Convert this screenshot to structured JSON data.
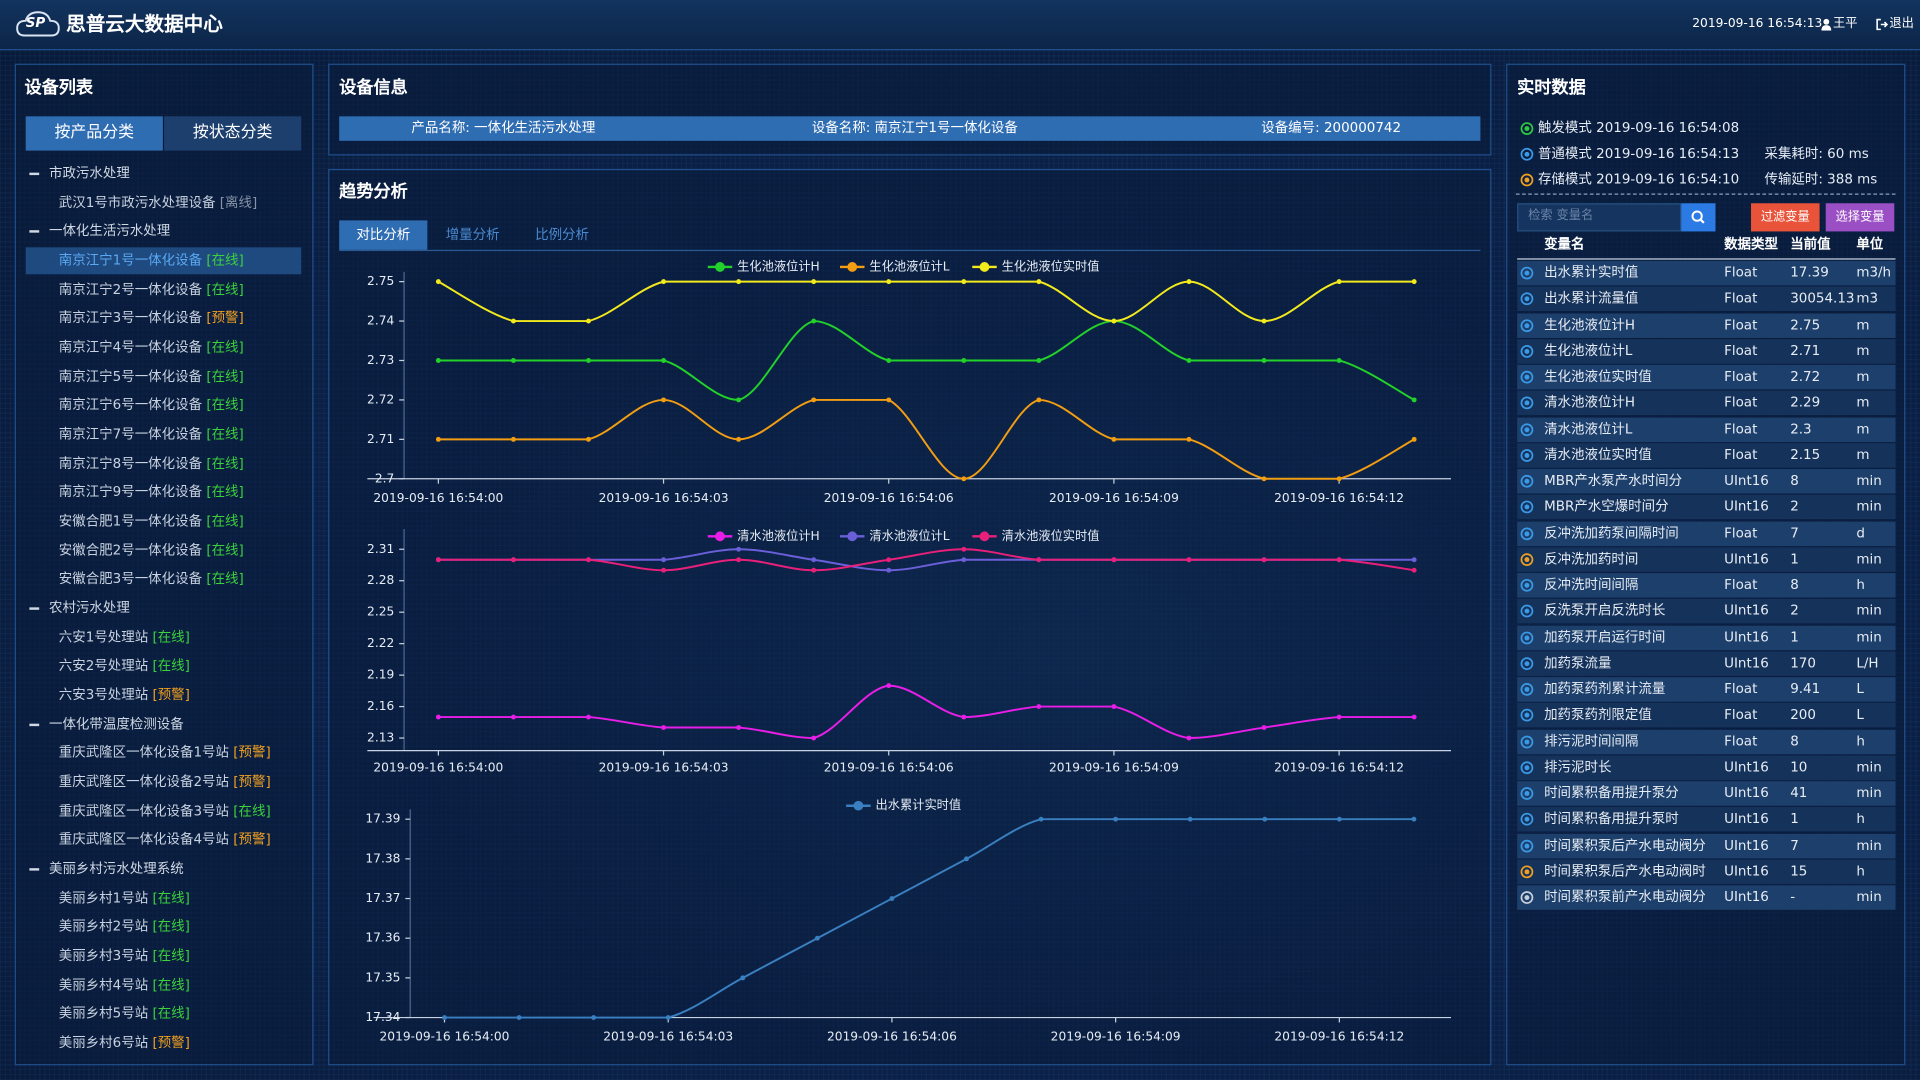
{
  "header": {
    "logo_text": "SP",
    "title": "思普云大数据中心",
    "datetime": "2019-09-16 16:54:13",
    "user": "王平",
    "logout": "退出"
  },
  "device_list": {
    "title": "设备列表",
    "tabs": [
      "按产品分类",
      "按状态分类"
    ],
    "active_tab": 0,
    "selected": [
      1,
      0
    ],
    "groups": [
      {
        "name": "市政污水处理",
        "items": [
          {
            "name": "武汉1号市政污水处理设备",
            "status": "[离线]",
            "color": "#8693a6"
          }
        ]
      },
      {
        "name": "一体化生活污水处理",
        "items": [
          {
            "name": "南京江宁1号一体化设备",
            "status": "[在线]",
            "color": "#3bd23b"
          },
          {
            "name": "南京江宁2号一体化设备",
            "status": "[在线]",
            "color": "#3bd23b"
          },
          {
            "name": "南京江宁3号一体化设备",
            "status": "[预警]",
            "color": "#f0a020"
          },
          {
            "name": "南京江宁4号一体化设备",
            "status": "[在线]",
            "color": "#3bd23b"
          },
          {
            "name": "南京江宁5号一体化设备",
            "status": "[在线]",
            "color": "#3bd23b"
          },
          {
            "name": "南京江宁6号一体化设备",
            "status": "[在线]",
            "color": "#3bd23b"
          },
          {
            "name": "南京江宁7号一体化设备",
            "status": "[在线]",
            "color": "#3bd23b"
          },
          {
            "name": "南京江宁8号一体化设备",
            "status": "[在线]",
            "color": "#3bd23b"
          },
          {
            "name": "南京江宁9号一体化设备",
            "status": "[在线]",
            "color": "#3bd23b"
          },
          {
            "name": "安徽合肥1号一体化设备",
            "status": "[在线]",
            "color": "#3bd23b"
          },
          {
            "name": "安徽合肥2号一体化设备",
            "status": "[在线]",
            "color": "#3bd23b"
          },
          {
            "name": "安徽合肥3号一体化设备",
            "status": "[在线]",
            "color": "#3bd23b"
          }
        ]
      },
      {
        "name": "农村污水处理",
        "items": [
          {
            "name": "六安1号处理站",
            "status": "[在线]",
            "color": "#3bd23b"
          },
          {
            "name": "六安2号处理站",
            "status": "[在线]",
            "color": "#3bd23b"
          },
          {
            "name": "六安3号处理站",
            "status": "[预警]",
            "color": "#f0a020"
          }
        ]
      },
      {
        "name": "一体化带温度检测设备",
        "items": [
          {
            "name": "重庆武隆区一体化设备1号站",
            "status": "[预警]",
            "color": "#f0a020"
          },
          {
            "name": "重庆武隆区一体化设备2号站",
            "status": "[预警]",
            "color": "#f0a020"
          },
          {
            "name": "重庆武隆区一体化设备3号站",
            "status": "[在线]",
            "color": "#3bd23b"
          },
          {
            "name": "重庆武隆区一体化设备4号站",
            "status": "[预警]",
            "color": "#f0a020"
          }
        ]
      },
      {
        "name": "美丽乡村污水处理系统",
        "items": [
          {
            "name": "美丽乡村1号站",
            "status": "[在线]",
            "color": "#3bd23b"
          },
          {
            "name": "美丽乡村2号站",
            "status": "[在线]",
            "color": "#3bd23b"
          },
          {
            "name": "美丽乡村3号站",
            "status": "[在线]",
            "color": "#3bd23b"
          },
          {
            "name": "美丽乡村4号站",
            "status": "[在线]",
            "color": "#3bd23b"
          },
          {
            "name": "美丽乡村5号站",
            "status": "[在线]",
            "color": "#3bd23b"
          },
          {
            "name": "美丽乡村6号站",
            "status": "[预警]",
            "color": "#f0a020"
          }
        ]
      }
    ]
  },
  "device_info": {
    "title": "设备信息",
    "fields": [
      {
        "label": "产品名称:",
        "value": "一体化生活污水处理"
      },
      {
        "label": "设备名称:",
        "value": "南京江宁1号一体化设备"
      },
      {
        "label": "设备编号:",
        "value": "200000742"
      }
    ]
  },
  "trend": {
    "title": "趋势分析",
    "tabs": [
      "对比分析",
      "增量分析",
      "比例分析"
    ],
    "active_tab": 0
  },
  "chart_data": [
    {
      "type": "line",
      "legend": "top",
      "categories": [
        "2019-09-16 16:54:00",
        null,
        null,
        "2019-09-16 16:54:03",
        null,
        null,
        "2019-09-16 16:54:06",
        null,
        null,
        "2019-09-16 16:54:09",
        null,
        null,
        "2019-09-16 16:54:12",
        null
      ],
      "ylim": [
        2.7,
        2.75
      ],
      "yticks": [
        2.7,
        2.71,
        2.72,
        2.73,
        2.74,
        2.75
      ],
      "series": [
        {
          "name": "生化池液位计H",
          "color": "#22d12a",
          "values": [
            2.73,
            2.73,
            2.73,
            2.73,
            2.72,
            2.74,
            2.73,
            2.73,
            2.73,
            2.74,
            2.73,
            2.73,
            2.73,
            2.72
          ]
        },
        {
          "name": "生化池液位计L",
          "color": "#f29d12",
          "values": [
            2.71,
            2.71,
            2.71,
            2.72,
            2.71,
            2.72,
            2.72,
            2.7,
            2.72,
            2.71,
            2.71,
            2.7,
            2.7,
            2.71
          ]
        },
        {
          "name": "生化池液位实时值",
          "color": "#f2ea1c",
          "values": [
            2.75,
            2.74,
            2.74,
            2.75,
            2.75,
            2.75,
            2.75,
            2.75,
            2.75,
            2.74,
            2.75,
            2.74,
            2.75,
            2.75
          ]
        }
      ]
    },
    {
      "type": "line",
      "legend": "top",
      "categories": [
        "2019-09-16 16:54:00",
        null,
        null,
        "2019-09-16 16:54:03",
        null,
        null,
        "2019-09-16 16:54:06",
        null,
        null,
        "2019-09-16 16:54:09",
        null,
        null,
        "2019-09-16 16:54:12",
        null
      ],
      "ylim": [
        2.118,
        2.32
      ],
      "yticks": [
        2.13,
        2.16,
        2.19,
        2.22,
        2.25,
        2.28,
        2.31
      ],
      "series": [
        {
          "name": "清水池液位计H",
          "color": "#e81ee8",
          "values": [
            2.15,
            2.15,
            2.15,
            2.14,
            2.14,
            2.13,
            2.18,
            2.15,
            2.16,
            2.16,
            2.13,
            2.14,
            2.15,
            2.15
          ]
        },
        {
          "name": "清水池液位计L",
          "color": "#6a5fd8",
          "values": [
            2.3,
            2.3,
            2.3,
            2.3,
            2.31,
            2.3,
            2.29,
            2.3,
            2.3,
            2.3,
            2.3,
            2.3,
            2.3,
            2.3
          ]
        },
        {
          "name": "清水池液位实时值",
          "color": "#e8207a",
          "values": [
            2.3,
            2.3,
            2.3,
            2.29,
            2.3,
            2.29,
            2.3,
            2.31,
            2.3,
            2.3,
            2.3,
            2.3,
            2.3,
            2.29
          ]
        }
      ]
    },
    {
      "type": "line",
      "legend": "top",
      "categories": [
        "2019-09-16 16:54:00",
        null,
        null,
        "2019-09-16 16:54:03",
        null,
        null,
        "2019-09-16 16:54:06",
        null,
        null,
        "2019-09-16 16:54:09",
        null,
        null,
        "2019-09-16 16:54:12",
        null
      ],
      "ylim": [
        17.34,
        17.39
      ],
      "yticks": [
        17.34,
        17.35,
        17.36,
        17.37,
        17.38,
        17.39
      ],
      "series": [
        {
          "name": "出水累计实时值",
          "color": "#3a7fc0",
          "values": [
            17.34,
            17.34,
            17.34,
            17.34,
            17.35,
            17.36,
            17.37,
            17.38,
            17.39,
            17.39,
            17.39,
            17.39,
            17.39,
            17.39
          ]
        }
      ]
    }
  ],
  "realtime": {
    "title": "实时数据",
    "modes": [
      {
        "text": "触发模式 2019-09-16 16:54:08",
        "color": "#2ecc40"
      },
      {
        "text": "普通模式 2019-09-16 16:54:13",
        "color": "#3a9ae8"
      },
      {
        "text": "存储模式 2019-09-16 16:54:10",
        "color": "#f0a020"
      }
    ],
    "stats": [
      "采集耗时: 60 ms",
      "传输延时: 388 ms"
    ],
    "search_placeholder": "检索 变量名",
    "buttons": [
      {
        "text": "过滤变量",
        "color": "#e8533a"
      },
      {
        "text": "选择变量",
        "color": "#9b4fc4"
      }
    ],
    "columns": [
      "变量名",
      "数据类型",
      "当前值",
      "单位"
    ],
    "rows": [
      {
        "icon": "#3a9ae8",
        "cells": [
          "出水累计实时值",
          "Float",
          "17.39",
          "m3/h"
        ]
      },
      {
        "icon": "#3a9ae8",
        "cells": [
          "出水累计流量值",
          "Float",
          "30054.13",
          "m3"
        ]
      },
      {
        "icon": "#3a9ae8",
        "cells": [
          "生化池液位计H",
          "Float",
          "2.75",
          "m"
        ]
      },
      {
        "icon": "#3a9ae8",
        "cells": [
          "生化池液位计L",
          "Float",
          "2.71",
          "m"
        ]
      },
      {
        "icon": "#3a9ae8",
        "cells": [
          "生化池液位实时值",
          "Float",
          "2.72",
          "m"
        ]
      },
      {
        "icon": "#3a9ae8",
        "cells": [
          "清水池液位计H",
          "Float",
          "2.29",
          "m"
        ]
      },
      {
        "icon": "#3a9ae8",
        "cells": [
          "清水池液位计L",
          "Float",
          "2.3",
          "m"
        ]
      },
      {
        "icon": "#3a9ae8",
        "cells": [
          "清水池液位实时值",
          "Float",
          "2.15",
          "m"
        ]
      },
      {
        "icon": "#3a9ae8",
        "cells": [
          "MBR产水泵产水时间分",
          "UInt16",
          "8",
          "min"
        ]
      },
      {
        "icon": "#3a9ae8",
        "cells": [
          "MBR产水空爆时间分",
          "UInt16",
          "2",
          "min"
        ]
      },
      {
        "icon": "#3a9ae8",
        "cells": [
          "反冲洗加药泵间隔时间",
          "Float",
          "7",
          "d"
        ]
      },
      {
        "icon": "#f0a020",
        "cells": [
          "反冲洗加药时间",
          "UInt16",
          "1",
          "min"
        ]
      },
      {
        "icon": "#3a9ae8",
        "cells": [
          "反冲洗时间间隔",
          "Float",
          "8",
          "h"
        ]
      },
      {
        "icon": "#3a9ae8",
        "cells": [
          "反洗泵开启反洗时长",
          "UInt16",
          "2",
          "min"
        ]
      },
      {
        "icon": "#3a9ae8",
        "cells": [
          "加药泵开启运行时间",
          "UInt16",
          "1",
          "min"
        ]
      },
      {
        "icon": "#3a9ae8",
        "cells": [
          "加药泵流量",
          "UInt16",
          "170",
          "L/H"
        ]
      },
      {
        "icon": "#3a9ae8",
        "cells": [
          "加药泵药剂累计流量",
          "Float",
          "9.41",
          "L"
        ]
      },
      {
        "icon": "#3a9ae8",
        "cells": [
          "加药泵药剂限定值",
          "Float",
          "200",
          "L"
        ]
      },
      {
        "icon": "#3a9ae8",
        "cells": [
          "排污泥时间间隔",
          "Float",
          "8",
          "h"
        ]
      },
      {
        "icon": "#3a9ae8",
        "cells": [
          "排污泥时长",
          "UInt16",
          "10",
          "min"
        ]
      },
      {
        "icon": "#3a9ae8",
        "cells": [
          "时间累积备用提升泵分",
          "UInt16",
          "41",
          "min"
        ]
      },
      {
        "icon": "#3a9ae8",
        "cells": [
          "时间累积备用提升泵时",
          "UInt16",
          "1",
          "h"
        ]
      },
      {
        "icon": "#3a9ae8",
        "cells": [
          "时间累积泵后产水电动阀分",
          "UInt16",
          "7",
          "min"
        ]
      },
      {
        "icon": "#f0a020",
        "cells": [
          "时间累积泵后产水电动阀时",
          "UInt16",
          "15",
          "h"
        ]
      },
      {
        "icon": "#c8d0da",
        "cells": [
          "时间累积泵前产水电动阀分",
          "UInt16",
          "-",
          "min"
        ]
      }
    ]
  }
}
